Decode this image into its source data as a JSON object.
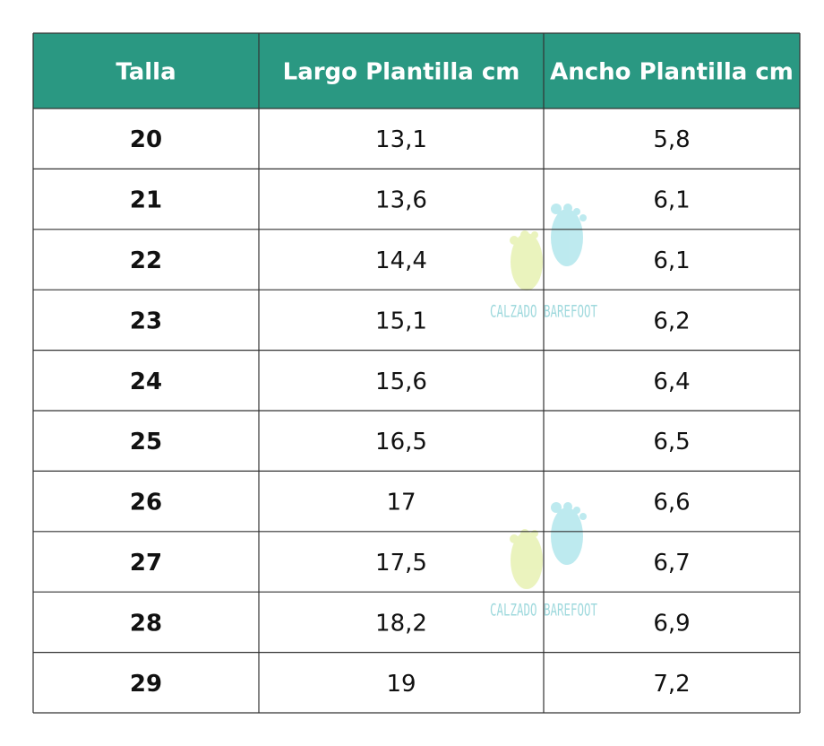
{
  "table": {
    "header": [
      "Talla",
      "Largo Plantilla cm",
      "Ancho Plantilla cm"
    ],
    "rows": [
      [
        "20",
        "13,1",
        "5,8"
      ],
      [
        "21",
        "13,6",
        "6,1"
      ],
      [
        "22",
        "14,4",
        "6,1"
      ],
      [
        "23",
        "15,1",
        "6,2"
      ],
      [
        "24",
        "15,6",
        "6,4"
      ],
      [
        "25",
        "16,5",
        "6,5"
      ],
      [
        "26",
        "17",
        "6,6"
      ],
      [
        "27",
        "17,5",
        "6,7"
      ],
      [
        "28",
        "18,2",
        "6,9"
      ],
      [
        "29",
        "19",
        "7,2"
      ]
    ]
  },
  "watermark": "CALZADO BAREFOOT"
}
